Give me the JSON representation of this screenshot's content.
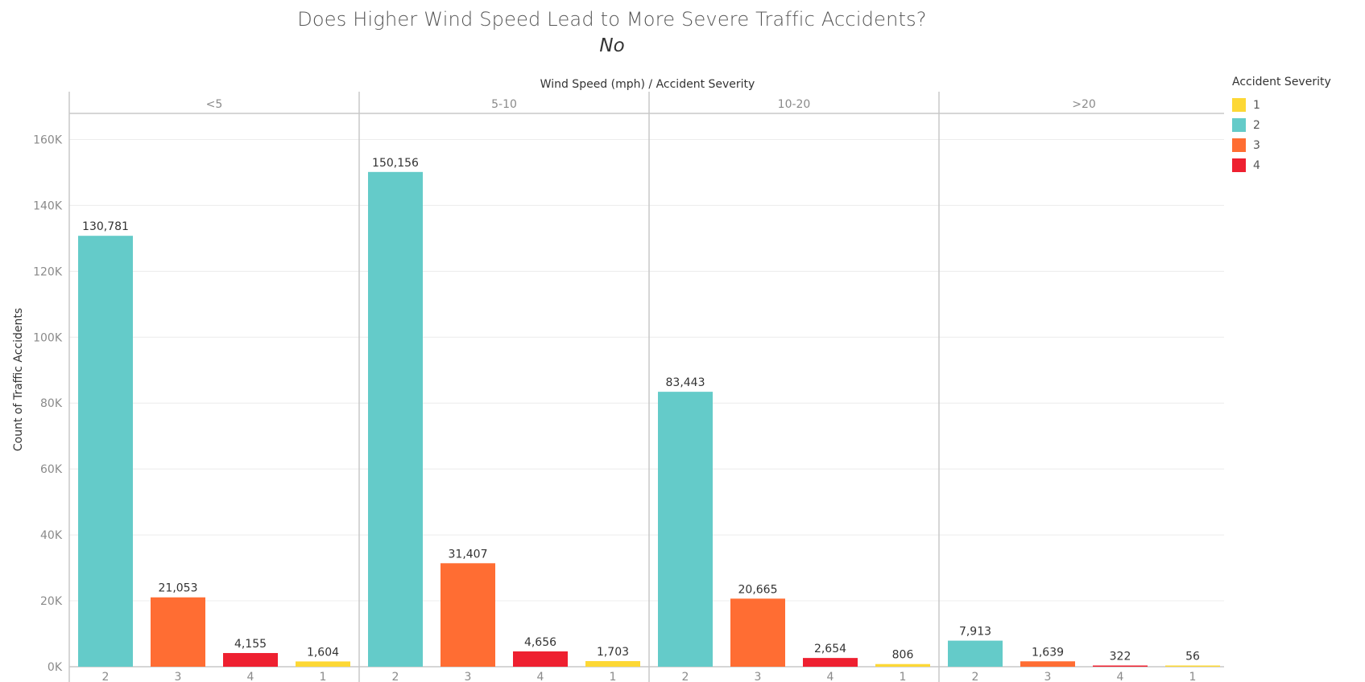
{
  "title": "Does Higher Wind Speed Lead to More Severe Traffic Accidents?",
  "subtitle": "No",
  "legend": {
    "title": "Accident Severity",
    "items": [
      {
        "label": "1",
        "color": "#FDD835"
      },
      {
        "label": "2",
        "color": "#64CBC9"
      },
      {
        "label": "3",
        "color": "#FF6D33"
      },
      {
        "label": "4",
        "color": "#EE2030"
      }
    ]
  },
  "chart_data": {
    "type": "bar",
    "title": "Does Higher Wind Speed Lead to More Severe Traffic Accidents?",
    "subtitle": "No",
    "header_label": "Wind Speed (mph)  /  Accident Severity",
    "ylabel": "Count of Traffic Accidents",
    "ylim": [
      0,
      165000
    ],
    "y_ticks": [
      0,
      20000,
      40000,
      60000,
      80000,
      100000,
      120000,
      140000,
      160000
    ],
    "y_tick_labels": [
      "0K",
      "20K",
      "40K",
      "60K",
      "80K",
      "100K",
      "120K",
      "140K",
      "160K"
    ],
    "grid": true,
    "legend_position": "right",
    "panels": [
      {
        "label": "<5",
        "bars": [
          {
            "severity": "2",
            "value": 130781,
            "label": "130,781",
            "color": "#64CBC9"
          },
          {
            "severity": "3",
            "value": 21053,
            "label": "21,053",
            "color": "#FF6D33"
          },
          {
            "severity": "4",
            "value": 4155,
            "label": "4,155",
            "color": "#EE2030"
          },
          {
            "severity": "1",
            "value": 1604,
            "label": "1,604",
            "color": "#FDD835"
          }
        ]
      },
      {
        "label": "5-10",
        "bars": [
          {
            "severity": "2",
            "value": 150156,
            "label": "150,156",
            "color": "#64CBC9"
          },
          {
            "severity": "3",
            "value": 31407,
            "label": "31,407",
            "color": "#FF6D33"
          },
          {
            "severity": "4",
            "value": 4656,
            "label": "4,656",
            "color": "#EE2030"
          },
          {
            "severity": "1",
            "value": 1703,
            "label": "1,703",
            "color": "#FDD835"
          }
        ]
      },
      {
        "label": "10-20",
        "bars": [
          {
            "severity": "2",
            "value": 83443,
            "label": "83,443",
            "color": "#64CBC9"
          },
          {
            "severity": "3",
            "value": 20665,
            "label": "20,665",
            "color": "#FF6D33"
          },
          {
            "severity": "4",
            "value": 2654,
            "label": "2,654",
            "color": "#EE2030"
          },
          {
            "severity": "1",
            "value": 806,
            "label": "806",
            "color": "#FDD835"
          }
        ]
      },
      {
        "label": ">20",
        "bars": [
          {
            "severity": "2",
            "value": 7913,
            "label": "7,913",
            "color": "#64CBC9"
          },
          {
            "severity": "3",
            "value": 1639,
            "label": "1,639",
            "color": "#FF6D33"
          },
          {
            "severity": "4",
            "value": 322,
            "label": "322",
            "color": "#EE2030"
          },
          {
            "severity": "1",
            "value": 56,
            "label": "56",
            "color": "#FDD835"
          }
        ]
      }
    ]
  }
}
